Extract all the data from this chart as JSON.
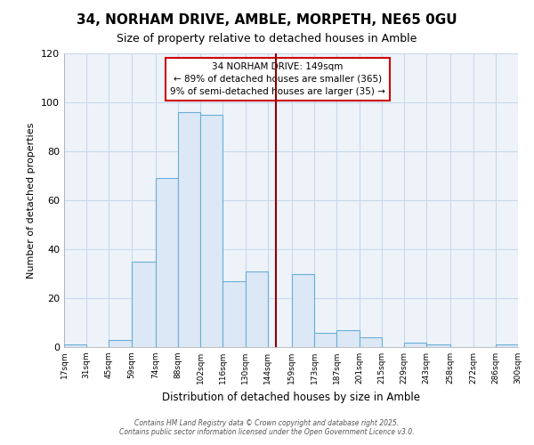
{
  "title": "34, NORHAM DRIVE, AMBLE, MORPETH, NE65 0GU",
  "subtitle": "Size of property relative to detached houses in Amble",
  "xlabel": "Distribution of detached houses by size in Amble",
  "ylabel": "Number of detached properties",
  "bin_labels": [
    "17sqm",
    "31sqm",
    "45sqm",
    "59sqm",
    "74sqm",
    "88sqm",
    "102sqm",
    "116sqm",
    "130sqm",
    "144sqm",
    "159sqm",
    "173sqm",
    "187sqm",
    "201sqm",
    "215sqm",
    "229sqm",
    "243sqm",
    "258sqm",
    "272sqm",
    "286sqm",
    "300sqm"
  ],
  "bin_edges": [
    17,
    31,
    45,
    59,
    74,
    88,
    102,
    116,
    130,
    144,
    159,
    173,
    187,
    201,
    215,
    229,
    243,
    258,
    272,
    286,
    300
  ],
  "bar_heights": [
    1,
    0,
    3,
    35,
    69,
    96,
    95,
    27,
    31,
    0,
    30,
    6,
    7,
    4,
    0,
    2,
    1,
    0,
    0,
    1
  ],
  "bar_color": "#dce8f5",
  "bar_edge_color": "#6aaed6",
  "grid_color": "#c8d8ec",
  "vline_x": 149,
  "vline_color": "#8b0000",
  "annotation_title": "34 NORHAM DRIVE: 149sqm",
  "annotation_line1": "← 89% of detached houses are smaller (365)",
  "annotation_line2": "9% of semi-detached houses are larger (35) →",
  "ylim": [
    0,
    120
  ],
  "yticks": [
    0,
    20,
    40,
    60,
    80,
    100,
    120
  ],
  "footer_line1": "Contains HM Land Registry data © Crown copyright and database right 2025.",
  "footer_line2": "Contains public sector information licensed under the Open Government Licence v3.0.",
  "plot_bg_color": "#eef3fa",
  "fig_bg_color": "#ffffff"
}
